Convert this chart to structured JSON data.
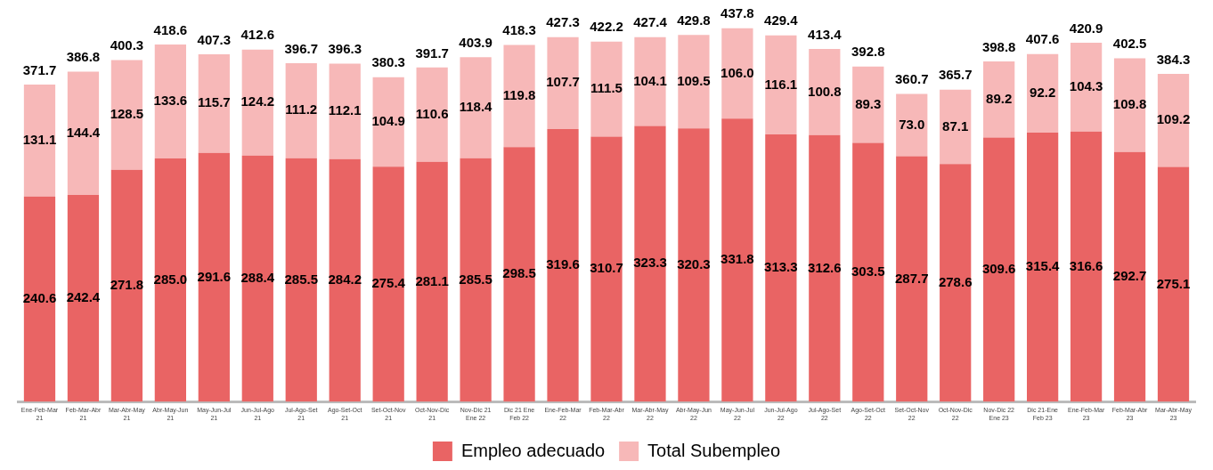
{
  "chart_data": {
    "type": "bar",
    "stacked": true,
    "legend": "bottom",
    "grid": false,
    "tick_labels": "x",
    "categories": [
      "Ene-Feb-Mar\n21",
      "Feb-Mar-Abr\n21",
      "Mar-Abr-May\n21",
      "Abr-May-Jun\n21",
      "May-Jun-Jul\n21",
      "Jun-Jul-Ago\n21",
      "Jul-Ago-Set\n21",
      "Ago-Set-Oct\n21",
      "Set-Oct-Nov\n21",
      "Oct-Nov-Dic\n21",
      "Nov-Dic 21\nEne 22",
      "Dic 21 Ene\nFeb 22",
      "Ene-Feb-Mar\n22",
      "Feb-Mar-Abr\n22",
      "Mar-Abr-May\n22",
      "Abr-May-Jun\n22",
      "May-Jun-Jul\n22",
      "Jun-Jul-Ago\n22",
      "Jul-Ago-Set\n22",
      "Ago-Set-Oct\n22",
      "Set-Oct-Nov\n22",
      "Oct-Nov-Dic\n22",
      "Nov-Dic 22\nEne 23",
      "Dic 21-Ene\nFeb 23",
      "Ene-Feb-Mar\n23",
      "Feb-Mar-Abr\n23",
      "Mar-Abr-May\n23"
    ],
    "series": [
      {
        "name": "Empleo adecuado",
        "color": "#e96464",
        "values": [
          240.6,
          242.4,
          271.8,
          285.0,
          291.6,
          288.4,
          285.5,
          284.2,
          275.4,
          281.1,
          285.5,
          298.5,
          319.6,
          310.7,
          323.3,
          320.3,
          331.8,
          313.3,
          312.6,
          303.5,
          287.7,
          278.6,
          309.6,
          315.4,
          316.6,
          292.7,
          275.1
        ],
        "value_labels": [
          "240.6",
          "242.4",
          "271.8",
          "285.0",
          "291.6",
          "288.4",
          "285.5",
          "284.2",
          "275.4",
          "281.1",
          "285.5",
          "298.5",
          "319.6",
          "310.7",
          "323.3",
          "320.3",
          "331.8",
          "313.3",
          "312.6",
          "303.5",
          "287.7",
          "278.6",
          "309.6",
          "315.4",
          "316.6",
          "292.7",
          "275.1"
        ]
      },
      {
        "name": "Total Subempleo",
        "color": "#f7b8b8",
        "values": [
          131.1,
          144.4,
          128.5,
          133.6,
          115.7,
          124.2,
          111.2,
          112.1,
          104.9,
          110.6,
          118.4,
          119.8,
          107.7,
          111.5,
          104.1,
          109.5,
          106.0,
          116.1,
          100.8,
          89.3,
          73.0,
          87.1,
          89.2,
          92.2,
          104.3,
          109.8,
          109.2
        ],
        "value_labels": [
          "131.1",
          "144.4",
          "128.5",
          "133.6",
          "115.7",
          "124.2",
          "111.2",
          "112.1",
          "104.9",
          "110.6",
          "118.4",
          "119.8",
          "107.7",
          "111.5",
          "104.1",
          "109.5",
          "106.0",
          "116.1",
          "100.8",
          "89.3",
          "73.0",
          "87.1",
          "89.2",
          "92.2",
          "104.3",
          "109.8",
          "109.2"
        ]
      }
    ],
    "totals": [
      "371.7",
      "386.8",
      "400.3",
      "418.6",
      "407.3",
      "412.6",
      "396.7",
      "396.3",
      "380.3",
      "391.7",
      "403.9",
      "418.3",
      "427.3",
      "422.2",
      "427.4",
      "429.8",
      "437.8",
      "429.4",
      "413.4",
      "392.8",
      "360.7",
      "365.7",
      "398.8",
      "407.6",
      "420.9",
      "402.5",
      "384.3"
    ]
  }
}
